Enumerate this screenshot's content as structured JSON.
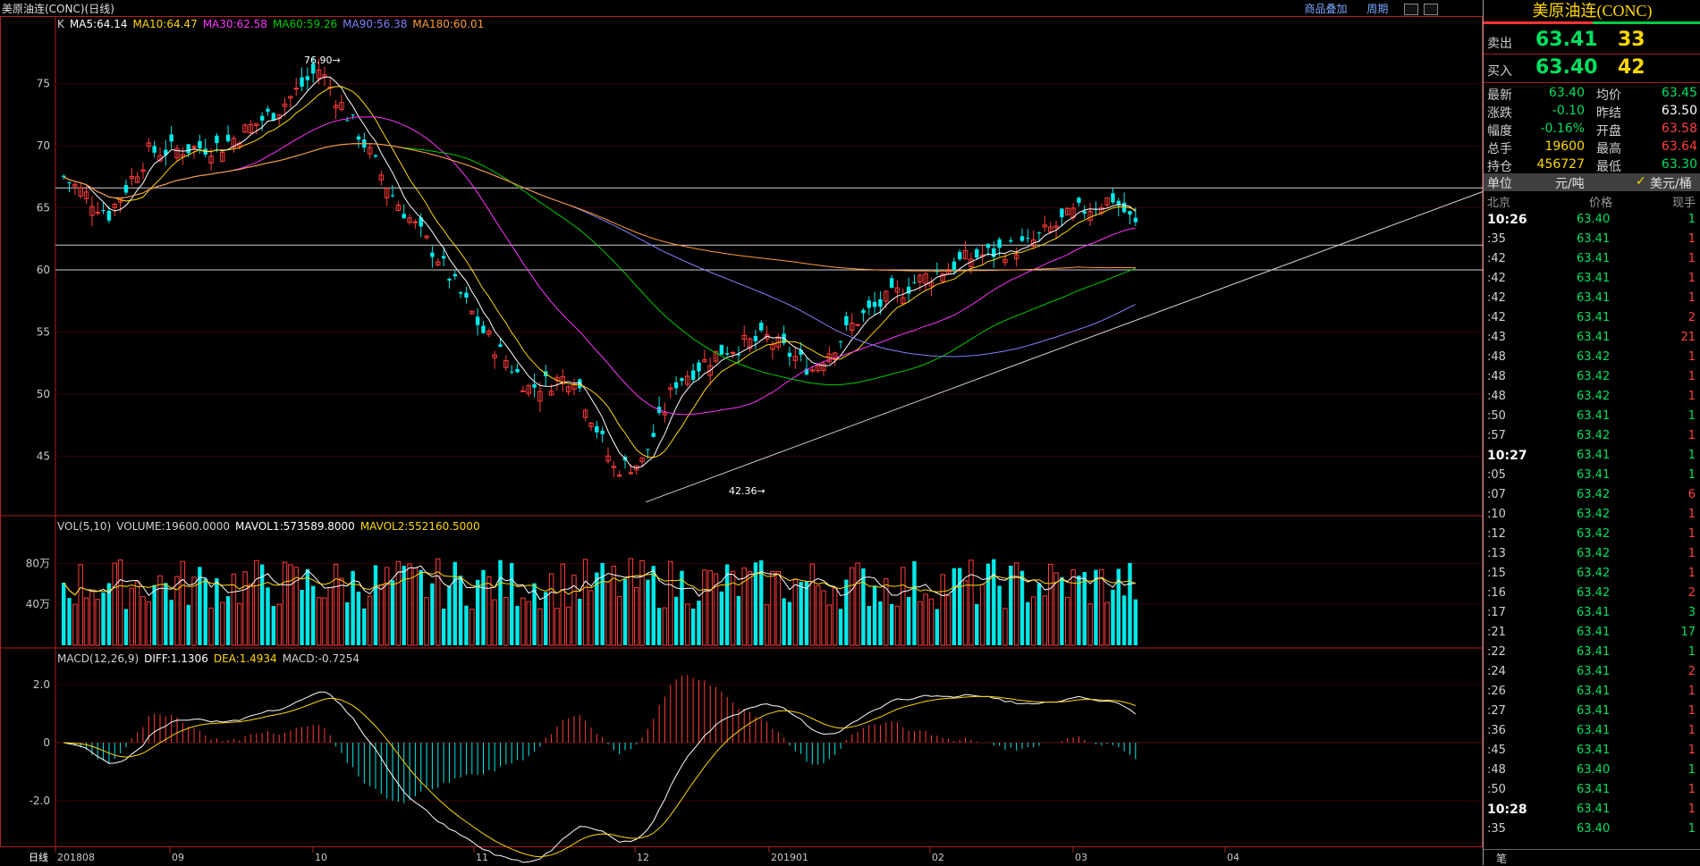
{
  "window": {
    "title": "美原油连(CONC)(日线)",
    "links": [
      "商品叠加",
      "周期"
    ]
  },
  "main_chart": {
    "legend": [
      {
        "label": "K",
        "color": "#d0d0d0"
      },
      {
        "label": "MA5:64.14",
        "color": "#ffffff"
      },
      {
        "label": "MA10:64.47",
        "color": "#ffd700"
      },
      {
        "label": "MA30:62.58",
        "color": "#ff33ff"
      },
      {
        "label": "MA60:59.26",
        "color": "#00cc00"
      },
      {
        "label": "MA90:56.38",
        "color": "#8080ff"
      },
      {
        "label": "MA180:60.01",
        "color": "#ff9933"
      }
    ],
    "y_ticks": [
      "75",
      "70",
      "65",
      "60",
      "55",
      "50",
      "45"
    ],
    "high_label": "76.90",
    "low_label": "42.36"
  },
  "volume_chart": {
    "legend": [
      {
        "label": "VOL(5,10)",
        "color": "#d0d0d0"
      },
      {
        "label": "VOLUME:19600.0000",
        "color": "#d0d0d0"
      },
      {
        "label": "MAVOL1:573589.8000",
        "color": "#ffffff"
      },
      {
        "label": "MAVOL2:552160.5000",
        "color": "#ffd700"
      }
    ],
    "y_ticks": [
      "80万",
      "40万"
    ]
  },
  "macd_chart": {
    "legend": [
      {
        "label": "MACD(12,26,9)",
        "color": "#d0d0d0"
      },
      {
        "label": "DIFF:1.1306",
        "color": "#ffffff"
      },
      {
        "label": "DEA:1.4934",
        "color": "#ffd700"
      },
      {
        "label": "MACD:-0.7254",
        "color": "#d0d0d0"
      }
    ],
    "y_ticks": [
      "2.0",
      "0",
      "-2.0"
    ]
  },
  "x_axis": {
    "period_label": "日线",
    "ticks": [
      "201808",
      "09",
      "10",
      "11",
      "12",
      "201901",
      "02",
      "03",
      "04"
    ]
  },
  "chart_data": {
    "type": "candlestick",
    "title": "美原油连(CONC)(日线)",
    "x_range": [
      "2018-08",
      "2019-04"
    ],
    "ylim": [
      41,
      79
    ],
    "monthly_closes": [
      {
        "month": "201808",
        "close": 69.8
      },
      {
        "month": "09",
        "close": 73.2
      },
      {
        "month": "10",
        "close": 65.3
      },
      {
        "month": "11",
        "close": 50.9
      },
      {
        "month": "12",
        "close": 45.4
      },
      {
        "month": "201901",
        "close": 53.8
      },
      {
        "month": "02",
        "close": 57.2
      },
      {
        "month": "03",
        "close": 60.1
      },
      {
        "month": "04",
        "close": 63.4
      }
    ],
    "high": 76.9,
    "low": 42.36,
    "horizontal_levels": [
      66.6,
      62.0,
      60.0
    ],
    "ma_last": {
      "MA5": 64.14,
      "MA10": 64.47,
      "MA30": 62.58,
      "MA60": 59.26,
      "MA90": 56.38,
      "MA180": 60.01
    }
  },
  "quote_panel": {
    "title": "美原油连(CONC)",
    "ask": {
      "label": "卖出",
      "price": "63.41",
      "vol": "33"
    },
    "bid": {
      "label": "买入",
      "price": "63.40",
      "vol": "42"
    },
    "stats": [
      {
        "l": "最新",
        "v1": "63.40",
        "c1": "#00e060",
        "l2": "均价",
        "v2": "63.45",
        "c2": "#00e060"
      },
      {
        "l": "涨跌",
        "v1": "-0.10",
        "c1": "#00e060",
        "l2": "昨结",
        "v2": "63.50",
        "c2": "#ffffff"
      },
      {
        "l": "幅度",
        "v1": "-0.16%",
        "c1": "#00e060",
        "l2": "开盘",
        "v2": "63.58",
        "c2": "#ff4040"
      },
      {
        "l": "总手",
        "v1": "19600",
        "c1": "#ffd700",
        "l2": "最高",
        "v2": "63.64",
        "c2": "#ff4040"
      },
      {
        "l": "持仓",
        "v1": "456727",
        "c1": "#ffd700",
        "l2": "最低",
        "v2": "63.30",
        "c2": "#00e060"
      }
    ],
    "unit": {
      "label": "单位",
      "value": "元/吨",
      "option": "美元/桶"
    },
    "tick_header": {
      "time": "北京",
      "price": "价格",
      "vol": "现手"
    },
    "ticks": [
      {
        "t": "10:26",
        "p": "63.40",
        "q": "1",
        "bold": true,
        "qc": "#00e060"
      },
      {
        "t": ":35",
        "p": "63.41",
        "q": "1",
        "qc": "#ff4040"
      },
      {
        "t": ":42",
        "p": "63.41",
        "q": "1",
        "qc": "#ff4040"
      },
      {
        "t": ":42",
        "p": "63.41",
        "q": "1",
        "qc": "#ff4040"
      },
      {
        "t": ":42",
        "p": "63.41",
        "q": "1",
        "qc": "#ff4040"
      },
      {
        "t": ":42",
        "p": "63.41",
        "q": "2",
        "qc": "#ff4040"
      },
      {
        "t": ":43",
        "p": "63.41",
        "q": "21",
        "qc": "#ff4040"
      },
      {
        "t": ":48",
        "p": "63.42",
        "q": "1",
        "qc": "#ff4040"
      },
      {
        "t": ":48",
        "p": "63.42",
        "q": "1",
        "qc": "#ff4040"
      },
      {
        "t": ":48",
        "p": "63.42",
        "q": "1",
        "qc": "#ff4040"
      },
      {
        "t": ":50",
        "p": "63.41",
        "q": "1",
        "qc": "#00e060"
      },
      {
        "t": ":57",
        "p": "63.42",
        "q": "1",
        "qc": "#ff4040"
      },
      {
        "t": "10:27",
        "p": "63.41",
        "q": "1",
        "bold": true,
        "qc": "#00e060"
      },
      {
        "t": ":05",
        "p": "63.41",
        "q": "1",
        "qc": "#00e060"
      },
      {
        "t": ":07",
        "p": "63.42",
        "q": "6",
        "qc": "#ff4040"
      },
      {
        "t": ":10",
        "p": "63.42",
        "q": "1",
        "qc": "#ff4040"
      },
      {
        "t": ":12",
        "p": "63.42",
        "q": "1",
        "qc": "#ff4040"
      },
      {
        "t": ":13",
        "p": "63.42",
        "q": "1",
        "qc": "#ff4040"
      },
      {
        "t": ":15",
        "p": "63.42",
        "q": "1",
        "qc": "#ff4040"
      },
      {
        "t": ":16",
        "p": "63.42",
        "q": "2",
        "qc": "#ff4040"
      },
      {
        "t": ":17",
        "p": "63.41",
        "q": "3",
        "qc": "#00e060"
      },
      {
        "t": ":21",
        "p": "63.41",
        "q": "17",
        "qc": "#00e060"
      },
      {
        "t": ":22",
        "p": "63.41",
        "q": "1",
        "qc": "#00e060"
      },
      {
        "t": ":24",
        "p": "63.41",
        "q": "2",
        "qc": "#ff4040"
      },
      {
        "t": ":26",
        "p": "63.41",
        "q": "1",
        "qc": "#ff4040"
      },
      {
        "t": ":27",
        "p": "63.41",
        "q": "1",
        "qc": "#ff4040"
      },
      {
        "t": ":36",
        "p": "63.41",
        "q": "1",
        "qc": "#ff4040"
      },
      {
        "t": ":45",
        "p": "63.41",
        "q": "1",
        "qc": "#ff4040"
      },
      {
        "t": ":48",
        "p": "63.40",
        "q": "1",
        "qc": "#00e060"
      },
      {
        "t": ":50",
        "p": "63.41",
        "q": "1",
        "qc": "#ff4040"
      },
      {
        "t": "10:28",
        "p": "63.41",
        "q": "1",
        "bold": true,
        "qc": "#ff4040"
      },
      {
        "t": ":35",
        "p": "63.40",
        "q": "1",
        "qc": "#00e060"
      }
    ],
    "footer": "笔"
  }
}
